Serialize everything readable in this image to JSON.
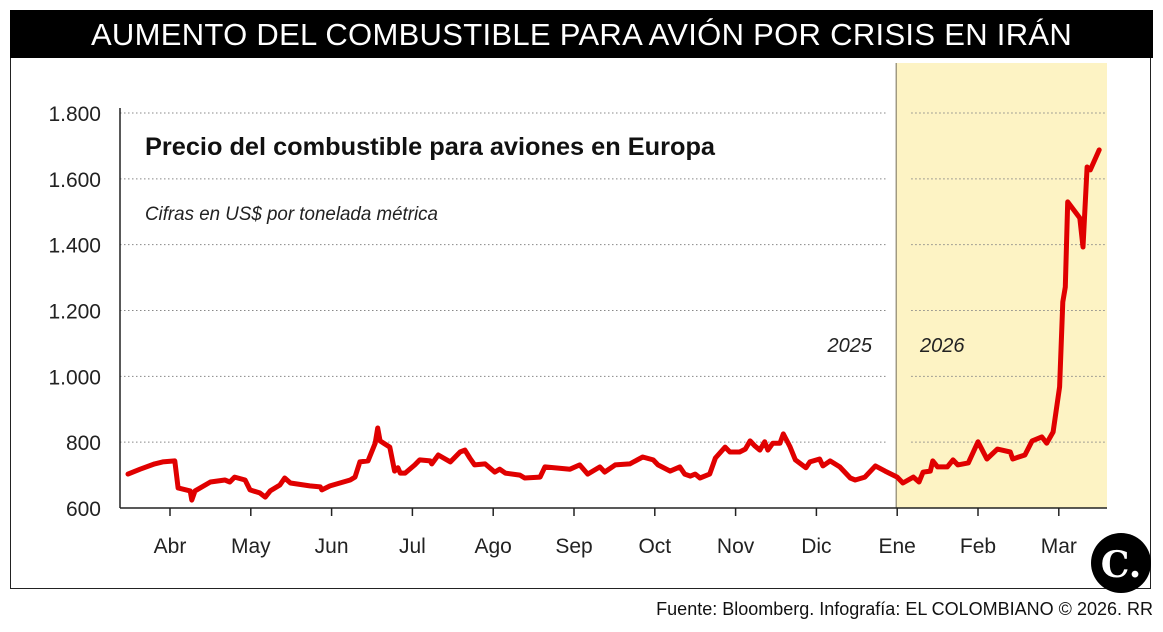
{
  "header": {
    "title": "AUMENTO DEL COMBUSTIBLE PARA AVIÓN POR CRISIS EN IRÁN"
  },
  "footer": {
    "source": "Fuente: Bloomberg. Infografía: EL COLOMBIANO © 2026. RR"
  },
  "logo": {
    "text": "C."
  },
  "colors": {
    "line": "#e00000",
    "highlight": "#fdf3c4",
    "grid": "#888888"
  },
  "chart_data": {
    "type": "line",
    "title": "Precio del combustible para aviones en Europa",
    "subtitle": "Cifras en US$ por tonelada métrica",
    "x_unit": "months since 1 Apr 2025",
    "ylim": [
      600,
      1800
    ],
    "yticks": [
      600,
      800,
      1000,
      1200,
      1400,
      1600,
      1800
    ],
    "ytick_labels": [
      "600",
      "800",
      "1.000",
      "1.200",
      "1.400",
      "1.600",
      "1.800"
    ],
    "xtick_labels": [
      "Abr",
      "May",
      "Jun",
      "Jul",
      "Ago",
      "Sep",
      "Oct",
      "Nov",
      "Dic",
      "Ene",
      "Feb",
      "Mar"
    ],
    "annotations": {
      "year_left": "2025",
      "year_right": "2026"
    },
    "highlight_from": 9,
    "grid": "dotted-horizontal",
    "series": [
      {
        "name": "Precio",
        "x": [
          -0.52,
          -0.37,
          -0.19,
          -0.09,
          0.06,
          0.1,
          0.25,
          0.27,
          0.31,
          0.5,
          0.68,
          0.74,
          0.8,
          0.93,
          0.99,
          1.11,
          1.18,
          1.24,
          1.36,
          1.42,
          1.49,
          1.73,
          1.86,
          1.88,
          1.98,
          2.23,
          2.29,
          2.35,
          2.45,
          2.54,
          2.57,
          2.6,
          2.72,
          2.78,
          2.82,
          2.85,
          2.91,
          3.03,
          3.09,
          3.22,
          3.24,
          3.32,
          3.47,
          3.59,
          3.65,
          3.71,
          3.77,
          3.9,
          4.02,
          4.08,
          4.15,
          4.33,
          4.39,
          4.58,
          4.64,
          4.95,
          5.07,
          5.17,
          5.32,
          5.38,
          5.51,
          5.69,
          5.85,
          5.98,
          6.04,
          6.19,
          6.31,
          6.37,
          6.44,
          6.5,
          6.56,
          6.68,
          6.75,
          6.87,
          6.93,
          7.05,
          7.12,
          7.18,
          7.24,
          7.3,
          7.36,
          7.4,
          7.46,
          7.55,
          7.59,
          7.67,
          7.74,
          7.87,
          7.92,
          8.04,
          8.08,
          8.17,
          8.29,
          8.42,
          8.48,
          8.6,
          8.73,
          8.85,
          9.0,
          9.07,
          9.2,
          9.27,
          9.32,
          9.41,
          9.44,
          9.5,
          9.62,
          9.69,
          9.75,
          9.88,
          10.0,
          10.11,
          10.24,
          10.4,
          10.43,
          10.58,
          10.67,
          10.79,
          10.85,
          10.93,
          11.01,
          11.05,
          11.08,
          11.11,
          11.26,
          11.3,
          11.35,
          11.39,
          11.5
        ],
        "y": [
          703,
          718,
          734,
          740,
          743,
          661,
          652,
          624,
          652,
          679,
          685,
          679,
          694,
          685,
          655,
          646,
          633,
          652,
          670,
          691,
          676,
          667,
          664,
          655,
          667,
          685,
          694,
          740,
          743,
          797,
          843,
          804,
          785,
          712,
          722,
          706,
          706,
          731,
          746,
          743,
          734,
          761,
          740,
          770,
          776,
          752,
          731,
          734,
          709,
          718,
          706,
          700,
          691,
          694,
          725,
          718,
          731,
          703,
          725,
          709,
          731,
          734,
          755,
          746,
          731,
          712,
          725,
          703,
          697,
          703,
          691,
          703,
          752,
          785,
          770,
          770,
          779,
          804,
          788,
          776,
          801,
          776,
          797,
          797,
          825,
          788,
          746,
          722,
          740,
          749,
          728,
          743,
          725,
          691,
          685,
          694,
          728,
          712,
          694,
          676,
          694,
          679,
          709,
          712,
          743,
          725,
          725,
          746,
          731,
          737,
          801,
          749,
          779,
          770,
          749,
          761,
          804,
          816,
          797,
          831,
          968,
          1226,
          1271,
          1530,
          1481,
          1393,
          1636,
          1627,
          1688
        ]
      }
    ]
  }
}
